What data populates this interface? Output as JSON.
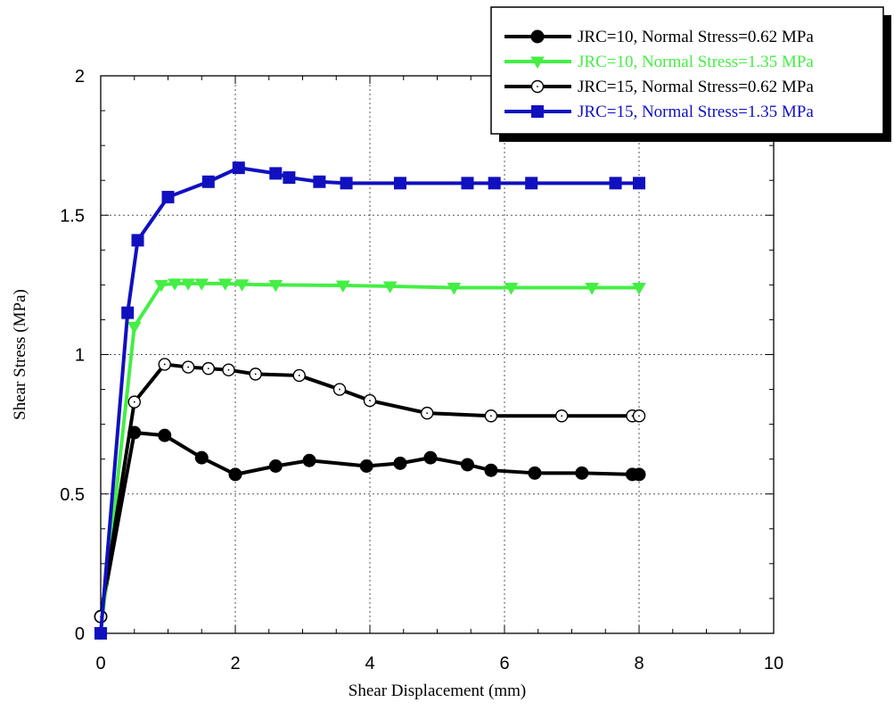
{
  "chart_data": {
    "type": "line",
    "title": "",
    "xlabel": "Shear Displacement (mm)",
    "ylabel": "Shear Stress (MPa)",
    "xlim": [
      0,
      10
    ],
    "ylim": [
      0,
      2
    ],
    "x_ticks": [
      "0",
      "2",
      "4",
      "6",
      "8",
      "10"
    ],
    "y_ticks": [
      "0",
      "0.5",
      "1",
      "1.5",
      "2"
    ],
    "grid": true,
    "legend_position": "top-right",
    "series": [
      {
        "name": "JRC=10, Normal Stress=0.62 MPa",
        "color": "#000000",
        "marker": "filled-circle",
        "x": [
          0,
          0.5,
          0.95,
          1.5,
          2.0,
          2.6,
          3.1,
          3.95,
          4.45,
          4.9,
          5.45,
          5.8,
          6.45,
          7.15,
          7.9,
          8.0
        ],
        "y": [
          0.06,
          0.72,
          0.71,
          0.63,
          0.57,
          0.6,
          0.62,
          0.6,
          0.61,
          0.63,
          0.605,
          0.585,
          0.575,
          0.575,
          0.57,
          0.57
        ]
      },
      {
        "name": "JRC=10, Normal Stress=1.35 MPa",
        "color": "#44ee44",
        "marker": "down-triangle",
        "x": [
          0,
          0.5,
          0.9,
          1.1,
          1.3,
          1.5,
          1.85,
          2.1,
          2.6,
          3.6,
          4.3,
          5.25,
          6.1,
          7.3,
          8.0
        ],
        "y": [
          0.0,
          1.1,
          1.25,
          1.255,
          1.255,
          1.255,
          1.255,
          1.252,
          1.25,
          1.248,
          1.245,
          1.24,
          1.24,
          1.24,
          1.24
        ]
      },
      {
        "name": "JRC=15, Normal Stress=0.62 MPa",
        "color": "#000000",
        "marker": "hollow-circle",
        "x": [
          0,
          0.5,
          0.95,
          1.3,
          1.6,
          1.9,
          2.3,
          2.95,
          3.55,
          4.0,
          4.85,
          5.8,
          6.85,
          7.9,
          8.0
        ],
        "y": [
          0.06,
          0.83,
          0.965,
          0.955,
          0.95,
          0.945,
          0.93,
          0.925,
          0.875,
          0.835,
          0.79,
          0.78,
          0.78,
          0.78,
          0.78
        ]
      },
      {
        "name": "JRC=15, Normal Stress=1.35 MPa",
        "color": "#1010c0",
        "marker": "filled-square",
        "x": [
          0,
          0.4,
          0.55,
          1.0,
          1.6,
          2.05,
          2.6,
          2.8,
          3.25,
          3.65,
          4.45,
          5.45,
          5.85,
          6.4,
          7.65,
          8.0
        ],
        "y": [
          0.0,
          1.15,
          1.41,
          1.565,
          1.62,
          1.67,
          1.65,
          1.635,
          1.62,
          1.615,
          1.615,
          1.615,
          1.615,
          1.615,
          1.615,
          1.615
        ]
      }
    ]
  }
}
